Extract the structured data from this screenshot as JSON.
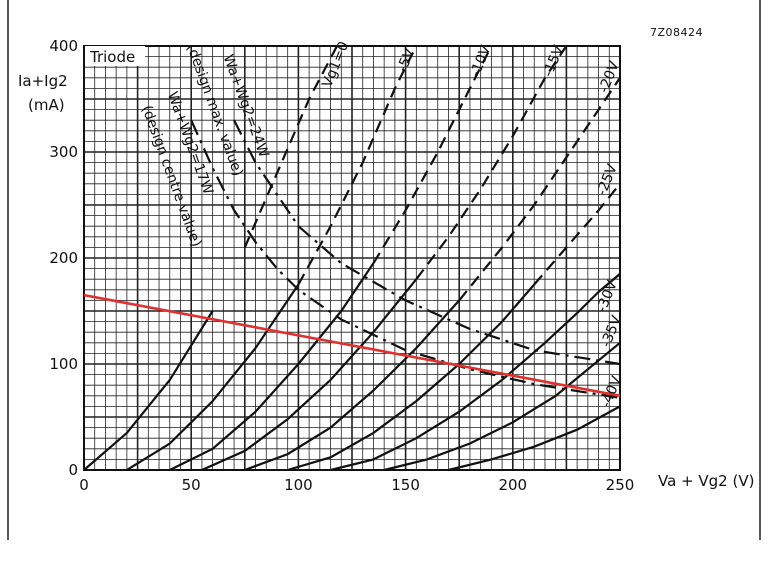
{
  "chart_data": {
    "type": "line",
    "figure_id": "7Z08424",
    "inset_label": "Triode",
    "xlabel": "Va + Vg2 (V)",
    "ylabel_line1": "Ia+Ig2",
    "ylabel_line2": "(mA)",
    "xlim": [
      0,
      250
    ],
    "ylim": [
      0,
      400
    ],
    "x_ticks": [
      0,
      50,
      100,
      150,
      200,
      250
    ],
    "y_ticks": [
      0,
      100,
      200,
      300,
      400
    ],
    "grid": true,
    "grid_step_x": 5,
    "grid_step_y": 10,
    "series": [
      {
        "name": "Vg1=0",
        "style": "solid-dashed",
        "x": [
          0,
          20,
          40,
          60,
          75,
          90,
          105,
          118
        ],
        "y": [
          0,
          35,
          85,
          150,
          210,
          280,
          350,
          400
        ]
      },
      {
        "name": "-5V",
        "style": "solid-dashed",
        "x": [
          20,
          40,
          60,
          80,
          100,
          115,
          130,
          145,
          155
        ],
        "y": [
          0,
          25,
          65,
          115,
          175,
          230,
          290,
          360,
          400
        ]
      },
      {
        "name": "-10V",
        "style": "solid-dashed",
        "x": [
          40,
          60,
          80,
          100,
          120,
          135,
          150,
          165,
          180,
          190
        ],
        "y": [
          0,
          20,
          55,
          100,
          150,
          195,
          245,
          300,
          360,
          400
        ]
      },
      {
        "name": "-15V",
        "style": "solid-dashed",
        "x": [
          55,
          75,
          95,
          115,
          135,
          155,
          170,
          185,
          200,
          215,
          225
        ],
        "y": [
          0,
          18,
          48,
          85,
          130,
          180,
          220,
          265,
          315,
          370,
          400
        ]
      },
      {
        "name": "-20V",
        "style": "solid-dashed",
        "x": [
          75,
          95,
          115,
          135,
          155,
          175,
          195,
          210,
          225,
          240,
          250
        ],
        "y": [
          0,
          15,
          40,
          75,
          115,
          160,
          210,
          250,
          295,
          340,
          370
        ]
      },
      {
        "name": "-25V",
        "style": "solid-dashed",
        "x": [
          95,
          115,
          135,
          155,
          175,
          195,
          210,
          225,
          240,
          250
        ],
        "y": [
          0,
          12,
          35,
          65,
          100,
          140,
          175,
          210,
          245,
          270
        ]
      },
      {
        "name": "-30V",
        "style": "solid-dashed",
        "x": [
          115,
          135,
          155,
          175,
          195,
          215,
          230,
          240,
          250
        ],
        "y": [
          0,
          10,
          30,
          55,
          85,
          120,
          148,
          168,
          185
        ]
      },
      {
        "name": "-35V",
        "style": "solid-dashed",
        "x": [
          140,
          160,
          180,
          200,
          220,
          235,
          250
        ],
        "y": [
          0,
          10,
          25,
          45,
          70,
          95,
          120
        ]
      },
      {
        "name": "-40V",
        "style": "solid",
        "x": [
          170,
          190,
          210,
          230,
          250
        ],
        "y": [
          0,
          10,
          22,
          38,
          60
        ]
      }
    ],
    "max_dissipation_curve": {
      "name": "Wa+Wg2=24W (design max. value)",
      "style": "dash-dot",
      "x": [
        70,
        80,
        90,
        100,
        120,
        150,
        180,
        210,
        250
      ],
      "y": [
        330,
        290,
        260,
        230,
        195,
        160,
        133,
        113,
        100
      ]
    },
    "centre_dissipation_curve": {
      "name": "Wa+Wg2=17W (design centre value)",
      "style": "dash-dot",
      "x": [
        50,
        60,
        70,
        80,
        90,
        100,
        120,
        150,
        180,
        210,
        250
      ],
      "y": [
        330,
        285,
        245,
        215,
        190,
        170,
        142,
        113,
        95,
        81,
        68
      ]
    },
    "load_line": {
      "color": "#e03030",
      "x": [
        0,
        250
      ],
      "y": [
        165,
        70
      ]
    }
  }
}
